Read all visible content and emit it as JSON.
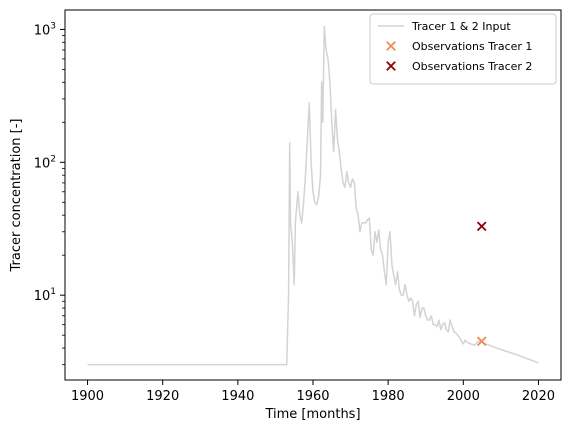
{
  "chart_data": {
    "type": "line",
    "xlabel": "Time [months]",
    "ylabel": "Tracer concentration [-]",
    "yscale": "log",
    "xlim": [
      1894,
      2026
    ],
    "ylim": [
      2.3,
      1400
    ],
    "x_ticks": [
      1900,
      1920,
      1940,
      1960,
      1980,
      2000,
      2020
    ],
    "x_tick_labels": [
      "1900",
      "1920",
      "1940",
      "1960",
      "1980",
      "2000",
      "2020"
    ],
    "y_ticks": [
      {
        "value": 10,
        "base": "10",
        "exp": "1"
      },
      {
        "value": 100,
        "base": "10",
        "exp": "2"
      },
      {
        "value": 1000,
        "base": "10",
        "exp": "3"
      }
    ],
    "grid": false,
    "legend_position": "top-right",
    "colors": {
      "input": "#d3d3d3",
      "obs1": "#f08a5b",
      "obs2": "#8b0000",
      "axes": "#000000"
    },
    "series": [
      {
        "name": "Tracer 1 & 2 Input",
        "kind": "line",
        "color": "#d3d3d3",
        "points": [
          [
            1900,
            3.0
          ],
          [
            1953.0,
            3.0
          ],
          [
            1953.5,
            10
          ],
          [
            1953.8,
            140
          ],
          [
            1954.0,
            35
          ],
          [
            1954.5,
            25
          ],
          [
            1955.0,
            12
          ],
          [
            1955.3,
            35
          ],
          [
            1956.0,
            60
          ],
          [
            1956.5,
            40
          ],
          [
            1957.0,
            35
          ],
          [
            1957.5,
            50
          ],
          [
            1958.0,
            80
          ],
          [
            1958.5,
            150
          ],
          [
            1959.0,
            280
          ],
          [
            1959.5,
            100
          ],
          [
            1960.0,
            60
          ],
          [
            1960.5,
            50
          ],
          [
            1961.0,
            48
          ],
          [
            1961.5,
            55
          ],
          [
            1962.0,
            80
          ],
          [
            1962.3,
            400
          ],
          [
            1962.6,
            200
          ],
          [
            1963.0,
            1050
          ],
          [
            1963.5,
            700
          ],
          [
            1964.0,
            600
          ],
          [
            1964.5,
            400
          ],
          [
            1965.0,
            200
          ],
          [
            1965.5,
            120
          ],
          [
            1966.0,
            250
          ],
          [
            1966.5,
            150
          ],
          [
            1967.0,
            120
          ],
          [
            1967.5,
            90
          ],
          [
            1968.0,
            70
          ],
          [
            1968.5,
            65
          ],
          [
            1969.0,
            85
          ],
          [
            1969.5,
            70
          ],
          [
            1970.0,
            65
          ],
          [
            1970.5,
            75
          ],
          [
            1971.0,
            70
          ],
          [
            1971.5,
            45
          ],
          [
            1972.0,
            40
          ],
          [
            1972.5,
            30
          ],
          [
            1973.0,
            35
          ],
          [
            1973.5,
            35
          ],
          [
            1974.0,
            35
          ],
          [
            1974.5,
            37
          ],
          [
            1975.0,
            38
          ],
          [
            1975.5,
            22
          ],
          [
            1976.0,
            20
          ],
          [
            1976.5,
            30
          ],
          [
            1977.0,
            25
          ],
          [
            1977.5,
            31
          ],
          [
            1978.0,
            22
          ],
          [
            1978.5,
            20
          ],
          [
            1979.0,
            15
          ],
          [
            1979.5,
            12
          ],
          [
            1980.0,
            25
          ],
          [
            1980.5,
            30
          ],
          [
            1981.0,
            17
          ],
          [
            1981.5,
            14
          ],
          [
            1982.0,
            12
          ],
          [
            1982.5,
            15
          ],
          [
            1983.0,
            11
          ],
          [
            1983.5,
            10
          ],
          [
            1984.0,
            10
          ],
          [
            1984.5,
            12
          ],
          [
            1985.0,
            10
          ],
          [
            1985.5,
            9
          ],
          [
            1986.0,
            9.5
          ],
          [
            1986.5,
            9
          ],
          [
            1987.0,
            7
          ],
          [
            1987.5,
            8.5
          ],
          [
            1988.0,
            9
          ],
          [
            1988.5,
            6.8
          ],
          [
            1989.0,
            8
          ],
          [
            1989.5,
            8
          ],
          [
            1990.0,
            7
          ],
          [
            1990.5,
            6.5
          ],
          [
            1991.0,
            6.5
          ],
          [
            1991.5,
            7
          ],
          [
            1992.0,
            6
          ],
          [
            1992.5,
            6
          ],
          [
            1993.0,
            5.8
          ],
          [
            1993.5,
            6.5
          ],
          [
            1994.0,
            5.5
          ],
          [
            1994.5,
            6
          ],
          [
            1995.0,
            6.2
          ],
          [
            1995.5,
            5.5
          ],
          [
            1996.0,
            5.3
          ],
          [
            1996.5,
            6.5
          ],
          [
            1997.0,
            5.8
          ],
          [
            1997.5,
            5.3
          ],
          [
            1998.0,
            5.2
          ],
          [
            1998.5,
            5
          ],
          [
            1999.0,
            4.8
          ],
          [
            1999.5,
            4.5
          ],
          [
            2000.0,
            4.3
          ],
          [
            2000.5,
            4.6
          ],
          [
            2001.0,
            4.4
          ],
          [
            2002.0,
            4.3
          ],
          [
            2003.0,
            4.2
          ],
          [
            2004.0,
            4.5
          ],
          [
            2005.0,
            4.4
          ],
          [
            2010.0,
            3.9
          ],
          [
            2015.0,
            3.5
          ],
          [
            2020.0,
            3.1
          ]
        ]
      },
      {
        "name": "Observations Tracer 1",
        "kind": "marker",
        "marker": "x",
        "color": "#f08a5b",
        "points": [
          [
            2004.9,
            4.5
          ]
        ]
      },
      {
        "name": "Observations Tracer 2",
        "kind": "marker",
        "marker": "x",
        "color": "#8b0000",
        "points": [
          [
            2004.9,
            33
          ]
        ]
      }
    ]
  }
}
